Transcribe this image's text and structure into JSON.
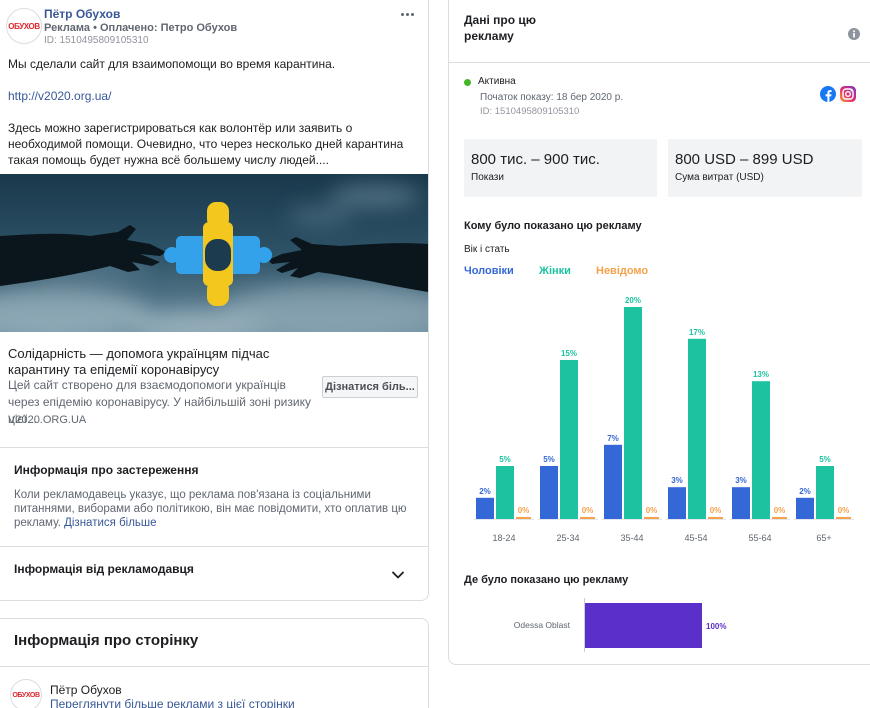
{
  "ad": {
    "avatar_text": "ОБУХОВ",
    "page_name": "Пётр Обухов",
    "meta": "Реклама • Оплачено: Петро Обухов",
    "id": "ID: 1510495809105310",
    "body": {
      "line1": "Мы сделали сайт для взаимопомощи во время карантина.",
      "link": "http://v2020.org.ua/",
      "paragraph": "Здесь можно зарегистрироваться как волонтёр или заявить о необходимой помощи. Очевидно, что через несколько дней карантина такая помощь будет нужна всё большему числу людей...."
    },
    "link_card": {
      "title": "Солідарність — допомога українцям підчас карантину та епідемії коронавірусу",
      "description": "Цей сайт створено для взаємодопомоги українців через епідемію коронавірусу. У найбільшій зоні ризику цієї...",
      "cta": "Дізнатися біль...",
      "domain": "V2020.ORG.UA"
    },
    "disclaimer": {
      "heading": "Информація про застереження",
      "text": "Коли рекламодавець указує, що реклама пов'язана із соціальними питаннями, виборами або політикою, він має повідомити, хто оплатив цю рекламу.",
      "link": "Дізнатися більше"
    },
    "advertiser_info": {
      "heading": "Інформація від рекламодавця"
    }
  },
  "page_info": {
    "heading": "Інформація про сторінку",
    "avatar_text": "ОБУХОВ",
    "page_name": "Пётр Обухов",
    "link": "Переглянути більше реклами з цієї сторінки"
  },
  "details": {
    "heading": "Дані про цю рекламу",
    "status": "Активна",
    "status_color": "#42b72a",
    "start": "Початок показу: 18 бер 2020 р.",
    "id": "ID: 1510495809105310",
    "platforms": [
      "facebook-icon",
      "instagram-icon"
    ],
    "impressions": {
      "value": "800 тис. – 900 тис.",
      "label": "Покази"
    },
    "spend": {
      "value": "800 USD – 899 USD",
      "label": "Сума витрат (USD)"
    },
    "audience": {
      "heading": "Кому було показано цю рекламу",
      "subheading": "Вік і стать"
    },
    "location": {
      "heading": "Де було показано цю рекламу"
    }
  },
  "chart_data": [
    {
      "type": "bar",
      "categories": [
        "18-24",
        "25-34",
        "35-44",
        "45-54",
        "55-64",
        "65+"
      ],
      "series": [
        {
          "name": "Чоловіки",
          "values": [
            2,
            5,
            7,
            3,
            3,
            2
          ],
          "color": "#3468d6"
        },
        {
          "name": "Жінки",
          "values": [
            5,
            15,
            20,
            17,
            13,
            5
          ],
          "color": "#1dc3a1"
        },
        {
          "name": "Невідомо",
          "values": [
            0,
            0,
            0,
            0,
            0,
            0
          ],
          "color": "#f5a24a"
        }
      ],
      "value_suffix": "%"
    },
    {
      "type": "bar",
      "orientation": "horizontal",
      "categories": [
        "Odessa Oblast"
      ],
      "values": [
        100
      ],
      "color": "#5b2fc9",
      "value_suffix": "%"
    }
  ]
}
